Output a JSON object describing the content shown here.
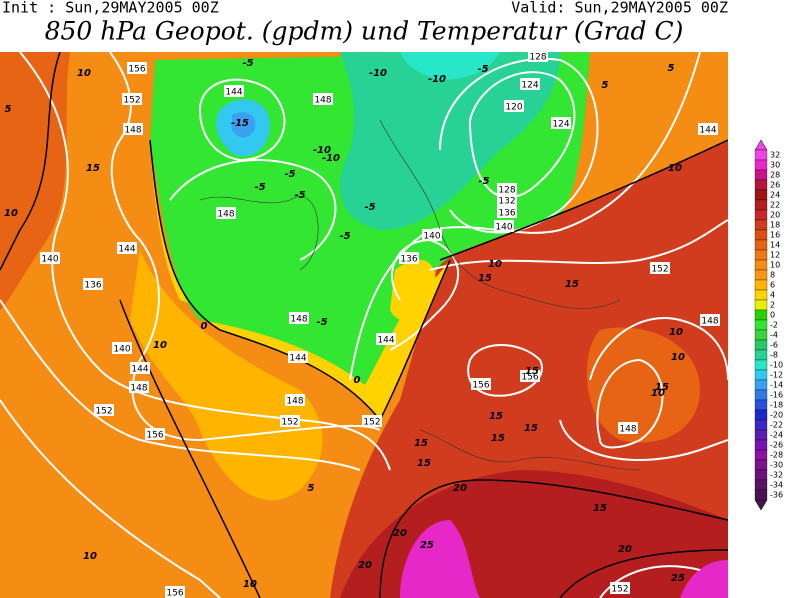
{
  "header": {
    "init": "Init : Sun,29MAY2005 00Z",
    "valid": "Valid: Sun,29MAY2005 00Z",
    "title": "850 hPa Geopot. (gpdm) und Temperatur (Grad C)"
  },
  "colorbar": {
    "levels": [
      32,
      30,
      28,
      26,
      24,
      22,
      20,
      18,
      16,
      14,
      12,
      10,
      8,
      6,
      4,
      2,
      0,
      -2,
      -4,
      -6,
      -8,
      -10,
      -12,
      -14,
      -16,
      -18,
      -20,
      -22,
      -24,
      -26,
      -28,
      -30,
      -32,
      -34,
      -36
    ],
    "colors": [
      "#f046e6",
      "#e628c8",
      "#c8148c",
      "#b4143c",
      "#a01414",
      "#b41e1e",
      "#c82828",
      "#d23c1e",
      "#dc5014",
      "#e66414",
      "#f07814",
      "#f58c14",
      "#fa9614",
      "#ffb400",
      "#ffd200",
      "#e6f000",
      "#28d200",
      "#32e632",
      "#3cd23c",
      "#28c864",
      "#28d296",
      "#28e6c8",
      "#32c8f0",
      "#3ca0f0",
      "#3278e6",
      "#2850dc",
      "#1e28c8",
      "#3c28c8",
      "#5a1eb4",
      "#7814b4",
      "#8c14a0",
      "#7a148c",
      "#6a1478",
      "#5a1464",
      "#4a1450"
    ]
  },
  "geopotential_labels": [
    156,
    152,
    148,
    144,
    148,
    148,
    144,
    140,
    136,
    140,
    144,
    148,
    152,
    156,
    148,
    144,
    148,
    152,
    152,
    144,
    136,
    140,
    140,
    136,
    132,
    128,
    124,
    120,
    124,
    128,
    152,
    148,
    144,
    156,
    156,
    148,
    152,
    156
  ],
  "temperature_labels": [
    10,
    5,
    15,
    10,
    -5,
    -15,
    -10,
    -10,
    -5,
    -10,
    -10,
    -5,
    -5,
    -5,
    -5,
    -5,
    -5,
    -5,
    0,
    0,
    10,
    10,
    15,
    15,
    10,
    10,
    15,
    10,
    15,
    15,
    15,
    15,
    15,
    15,
    5,
    20,
    20,
    25,
    20,
    10,
    10,
    15,
    20,
    25,
    5,
    5,
    10
  ]
}
